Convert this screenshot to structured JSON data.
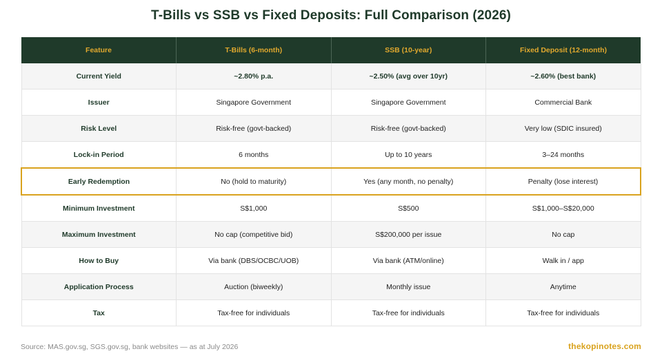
{
  "title": "T-Bills vs SSB vs Fixed Deposits: Full Comparison (2026)",
  "table": {
    "headers": [
      "Feature",
      "T-Bills (6-month)",
      "SSB (10-year)",
      "Fixed Deposit (12-month)"
    ],
    "rows": [
      [
        "Current Yield",
        "~2.80% p.a.",
        "~2.50% (avg over 10yr)",
        "~2.60% (best bank)"
      ],
      [
        "Issuer",
        "Singapore Government",
        "Singapore Government",
        "Commercial Bank"
      ],
      [
        "Risk Level",
        "Risk-free (govt-backed)",
        "Risk-free (govt-backed)",
        "Very low (SDIC insured)"
      ],
      [
        "Lock-in Period",
        "6 months",
        "Up to 10 years",
        "3–24 months"
      ],
      [
        "Early Redemption",
        "No (hold to maturity)",
        "Yes (any month, no penalty)",
        "Penalty (lose interest)"
      ],
      [
        "Minimum Investment",
        "S$1,000",
        "S$500",
        "S$1,000–S$20,000"
      ],
      [
        "Maximum Investment",
        "No cap (competitive bid)",
        "S$200,000 per issue",
        "No cap"
      ],
      [
        "How to Buy",
        "Via bank (DBS/OCBC/UOB)",
        "Via bank (ATM/online)",
        "Walk in / app"
      ],
      [
        "Application Process",
        "Auction (biweekly)",
        "Monthly issue",
        "Anytime"
      ],
      [
        "Tax",
        "Tax-free for individuals",
        "Tax-free for individuals",
        "Tax-free for individuals"
      ]
    ]
  },
  "footer": {
    "source": "Source: MAS.gov.sg, SGS.gov.sg, bank websites — as at July 2026",
    "brand": "thekopinotes.com"
  },
  "colors": {
    "header_bg": "#1f3a2a",
    "header_text": "#e0a82e",
    "highlight_border": "#d9a21d",
    "alt_row_bg": "#f5f5f5"
  }
}
